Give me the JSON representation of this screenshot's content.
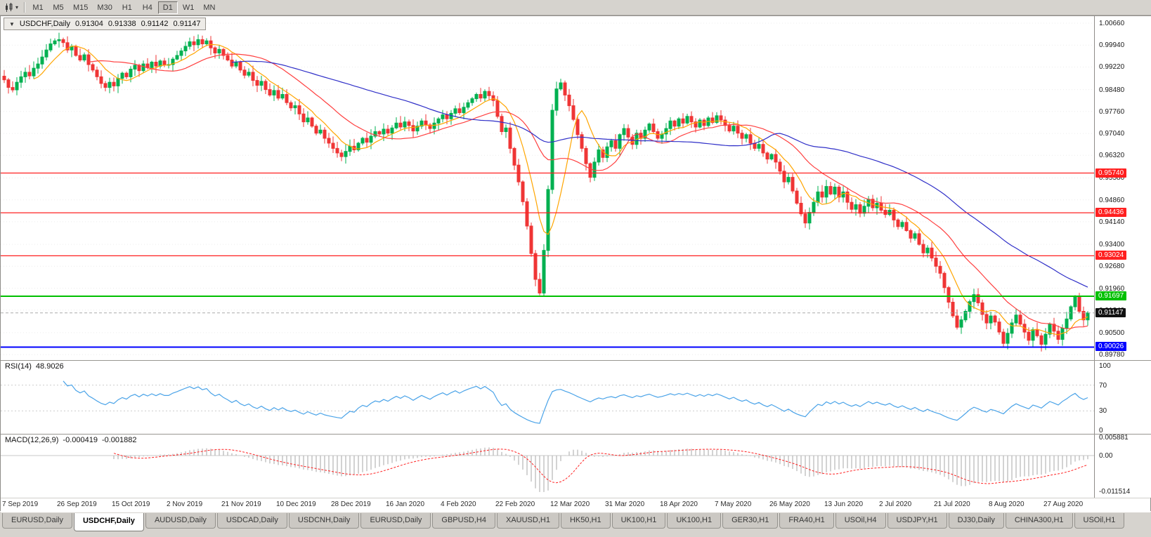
{
  "toolbar": {
    "timeframes": [
      "M1",
      "M5",
      "M15",
      "M30",
      "H1",
      "H4",
      "D1",
      "W1",
      "MN"
    ],
    "active_timeframe": "D1"
  },
  "chart": {
    "title": {
      "symbol": "USDCHF,Daily",
      "open": "0.91304",
      "high": "0.91338",
      "low": "0.91142",
      "close": "0.91147"
    },
    "price_axis_labels": [
      "1.00660",
      "0.99940",
      "0.99220",
      "0.98480",
      "0.97760",
      "0.97040",
      "0.96320",
      "0.95580",
      "0.94860",
      "0.94140",
      "0.93400",
      "0.92680",
      "0.91960",
      "0.91240",
      "0.90500",
      "0.89780"
    ],
    "date_labels": [
      {
        "index": 0,
        "text": "7 Sep 2019"
      },
      {
        "index": 13,
        "text": "26 Sep 2019"
      },
      {
        "index": 26,
        "text": "15 Oct 2019"
      },
      {
        "index": 39,
        "text": "2 Nov 2019"
      },
      {
        "index": 52,
        "text": "21 Nov 2019"
      },
      {
        "index": 65,
        "text": "10 Dec 2019"
      },
      {
        "index": 78,
        "text": "28 Dec 2019"
      },
      {
        "index": 91,
        "text": "16 Jan 2020"
      },
      {
        "index": 104,
        "text": "4 Feb 2020"
      },
      {
        "index": 117,
        "text": "22 Feb 2020"
      },
      {
        "index": 130,
        "text": "12 Mar 2020"
      },
      {
        "index": 143,
        "text": "31 Mar 2020"
      },
      {
        "index": 156,
        "text": "18 Apr 2020"
      },
      {
        "index": 169,
        "text": "7 May 2020"
      },
      {
        "index": 182,
        "text": "26 May 2020"
      },
      {
        "index": 195,
        "text": "13 Jun 2020"
      },
      {
        "index": 208,
        "text": "2 Jul 2020"
      },
      {
        "index": 221,
        "text": "21 Jul 2020"
      },
      {
        "index": 234,
        "text": "8 Aug 2020"
      },
      {
        "index": 247,
        "text": "27 Aug 2020"
      }
    ]
  },
  "rsi": {
    "label": "RSI(14)",
    "value": "48.9026",
    "axis_labels": [
      {
        "text": "100",
        "v": 100
      },
      {
        "text": "70",
        "v": 70
      },
      {
        "text": "30",
        "v": 30
      },
      {
        "text": "0",
        "v": 0
      }
    ]
  },
  "macd": {
    "label": "MACD(12,26,9)",
    "value1": "-0.000419",
    "value2": "-0.001882",
    "axis_labels": [
      {
        "text": "0.005881",
        "v": 0.005881
      },
      {
        "text": "0.00",
        "v": 0
      },
      {
        "text": "-0.011514",
        "v": -0.011514
      }
    ]
  },
  "chart_data": {
    "type": "candlestick",
    "symbol": "USDCHF",
    "timeframe": "Daily",
    "ylim": [
      0.8978,
      1.0066
    ],
    "candle_up_color": "#00B050",
    "candle_down_color": "#EF3535",
    "closes": [
      0.988,
      0.9855,
      0.9847,
      0.9872,
      0.989,
      0.9905,
      0.9893,
      0.9918,
      0.9932,
      0.9955,
      0.9978,
      0.9998,
      1.0008,
      1.0012,
      1.0002,
      0.9978,
      0.999,
      0.996,
      0.9945,
      0.9962,
      0.993,
      0.9912,
      0.989,
      0.9868,
      0.9855,
      0.9872,
      0.986,
      0.9885,
      0.9902,
      0.989,
      0.9915,
      0.9928,
      0.991,
      0.9932,
      0.992,
      0.9938,
      0.9925,
      0.9942,
      0.993,
      0.993,
      0.9948,
      0.996,
      0.9975,
      0.999,
      1.0005,
      0.9995,
      1.0012,
      0.9998,
      1.0008,
      0.9985,
      0.9968,
      0.998,
      0.996,
      0.9945,
      0.9925,
      0.9938,
      0.9912,
      0.9895,
      0.9905,
      0.9878,
      0.9862,
      0.9875,
      0.9848,
      0.983,
      0.9845,
      0.982,
      0.9832,
      0.9805,
      0.9788,
      0.9795,
      0.9768,
      0.9742,
      0.9755,
      0.9728,
      0.9705,
      0.9715,
      0.9688,
      0.9672,
      0.9655,
      0.964,
      0.9628,
      0.9645,
      0.9662,
      0.965,
      0.9672,
      0.9688,
      0.9675,
      0.9695,
      0.971,
      0.9702,
      0.9718,
      0.9705,
      0.9722,
      0.9738,
      0.9725,
      0.9742,
      0.973,
      0.9712,
      0.9728,
      0.9745,
      0.9732,
      0.972,
      0.9738,
      0.9752,
      0.9765,
      0.9752,
      0.977,
      0.9785,
      0.9772,
      0.979,
      0.9805,
      0.9818,
      0.9832,
      0.982,
      0.9842,
      0.9828,
      0.9812,
      0.976,
      0.971,
      0.9722,
      0.9655,
      0.96,
      0.9545,
      0.948,
      0.94,
      0.931,
      0.9225,
      0.918,
      0.932,
      0.952,
      0.978,
      0.985,
      0.987,
      0.983,
      0.9795,
      0.975,
      0.97,
      0.9655,
      0.9605,
      0.956,
      0.961,
      0.965,
      0.9625,
      0.966,
      0.968,
      0.9655,
      0.97,
      0.972,
      0.9692,
      0.9668,
      0.9705,
      0.9688,
      0.9715,
      0.9735,
      0.971,
      0.9688,
      0.9702,
      0.972,
      0.9745,
      0.9728,
      0.9752,
      0.9738,
      0.976,
      0.9742,
      0.9725,
      0.9748,
      0.973,
      0.9755,
      0.974,
      0.9762,
      0.9748,
      0.973,
      0.9712,
      0.9728,
      0.9705,
      0.9688,
      0.97,
      0.9672,
      0.9655,
      0.9668,
      0.964,
      0.962,
      0.9635,
      0.961,
      0.958,
      0.9545,
      0.956,
      0.9515,
      0.9475,
      0.944,
      0.941,
      0.9445,
      0.9478,
      0.9512,
      0.9495,
      0.953,
      0.9505,
      0.9528,
      0.9495,
      0.9512,
      0.9478,
      0.9455,
      0.947,
      0.9442,
      0.9465,
      0.9488,
      0.946,
      0.9475,
      0.9452,
      0.9438,
      0.9452,
      0.942,
      0.9398,
      0.9412,
      0.9385,
      0.936,
      0.9375,
      0.934,
      0.9312,
      0.9328,
      0.9295,
      0.9268,
      0.9245,
      0.9198,
      0.915,
      0.9105,
      0.9068,
      0.9092,
      0.912,
      0.9152,
      0.9175,
      0.9148,
      0.911,
      0.9082,
      0.9105,
      0.9085,
      0.9052,
      0.9015,
      0.9048,
      0.9082,
      0.9108,
      0.9078,
      0.9052,
      0.9025,
      0.906,
      0.904,
      0.9012,
      0.9045,
      0.9078,
      0.9055,
      0.9028,
      0.9065,
      0.9095,
      0.9135,
      0.9168,
      0.912,
      0.9092,
      0.9115
    ],
    "moving_averages": [
      {
        "period": 8,
        "color": "#FFA500"
      },
      {
        "period": 21,
        "color": "#FF4040"
      },
      {
        "period": 55,
        "color": "#3030C8"
      }
    ],
    "rsi": {
      "period": 14,
      "last_value": 48.9026,
      "color": "#4AA3E8",
      "levels": [
        70,
        30
      ]
    },
    "macd": {
      "fast": 12,
      "slow": 26,
      "signal": 9,
      "histogram_color": "#B5B5B5",
      "signal_color": "#FF2020"
    },
    "levels": [
      {
        "label": "0.95740",
        "price": 0.9574,
        "color": "#FF2020",
        "width": 1.2
      },
      {
        "label": "0.94436",
        "price": 0.94436,
        "color": "#FF2020",
        "width": 1.2
      },
      {
        "label": "0.93024",
        "price": 0.93024,
        "color": "#FF2020",
        "width": 1.2
      },
      {
        "label": "0.91697",
        "price": 0.91697,
        "color": "#00C000",
        "width": 2
      },
      {
        "label": "0.90026",
        "price": 0.90026,
        "color": "#0000FF",
        "width": 2
      }
    ],
    "current_price": {
      "label": "0.91147",
      "price": 0.91147,
      "color": "#111111"
    }
  },
  "tabs": [
    {
      "label": "EURUSD,Daily",
      "active": false
    },
    {
      "label": "USDCHF,Daily",
      "active": true
    },
    {
      "label": "AUDUSD,Daily",
      "active": false
    },
    {
      "label": "USDCAD,Daily",
      "active": false
    },
    {
      "label": "USDCNH,Daily",
      "active": false
    },
    {
      "label": "EURUSD,Daily",
      "active": false
    },
    {
      "label": "GBPUSD,H4",
      "active": false
    },
    {
      "label": "XAUUSD,H1",
      "active": false
    },
    {
      "label": "HK50,H1",
      "active": false
    },
    {
      "label": "UK100,H1",
      "active": false
    },
    {
      "label": "UK100,H1",
      "active": false
    },
    {
      "label": "GER30,H1",
      "active": false
    },
    {
      "label": "FRA40,H1",
      "active": false
    },
    {
      "label": "USOil,H4",
      "active": false
    },
    {
      "label": "USDJPY,H1",
      "active": false
    },
    {
      "label": "DJ30,Daily",
      "active": false
    },
    {
      "label": "CHINA300,H1",
      "active": false
    },
    {
      "label": "USOil,H1",
      "active": false
    }
  ]
}
